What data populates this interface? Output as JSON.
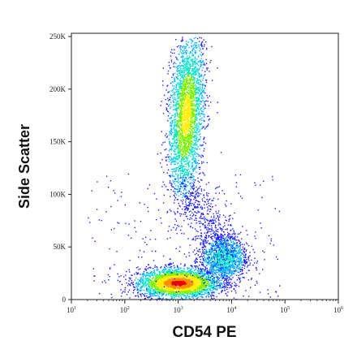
{
  "chart_data": {
    "type": "scatter",
    "subtype": "flow-cytometry-density-dot-plot",
    "xlabel": "CD54 PE",
    "ylabel": "Side Scatter",
    "x_scale": "log",
    "xlim": [
      10,
      1000000
    ],
    "ylim": [
      0,
      250000
    ],
    "x_ticks": [
      {
        "base": "10",
        "exp": "1",
        "value": 10
      },
      {
        "base": "10",
        "exp": "2",
        "value": 100
      },
      {
        "base": "10",
        "exp": "3",
        "value": 1000
      },
      {
        "base": "10",
        "exp": "4",
        "value": 10000
      },
      {
        "base": "10",
        "exp": "5",
        "value": 100000
      },
      {
        "base": "10",
        "exp": "6",
        "value": 1000000
      }
    ],
    "y_ticks": [
      {
        "label": "0",
        "value": 0
      },
      {
        "label": "50K",
        "value": 50000
      },
      {
        "label": "100K",
        "value": 100000
      },
      {
        "label": "150K",
        "value": 150000
      },
      {
        "label": "200K",
        "value": 200000
      },
      {
        "label": "250K",
        "value": 250000
      }
    ],
    "populations": [
      {
        "center_x": 1000,
        "center_y": 16000,
        "density": "highest"
      },
      {
        "center_x": 1400,
        "center_y": 175000,
        "density": "high"
      },
      {
        "center_x": 7000,
        "center_y": 40000,
        "density": "medium"
      }
    ],
    "colormap": [
      "#1c1cff",
      "#00b4ff",
      "#00e6c8",
      "#7cf000",
      "#ffee00",
      "#ff8c00",
      "#e80000"
    ],
    "grid": false,
    "legend": "none"
  }
}
